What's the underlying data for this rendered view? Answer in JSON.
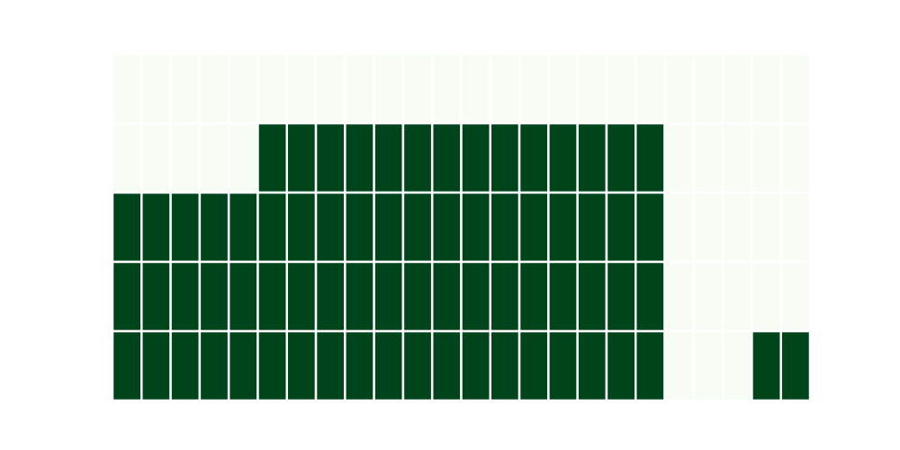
{
  "chart_data": {
    "type": "heatmap",
    "title": "",
    "xlabel": "",
    "ylabel": "",
    "rows": 5,
    "cols": 24,
    "values": [
      [
        0,
        0,
        0,
        0,
        0,
        0,
        0,
        0,
        0,
        0,
        0,
        0,
        0,
        0,
        0,
        0,
        0,
        0,
        0,
        0,
        0,
        0,
        0,
        0
      ],
      [
        0,
        0,
        0,
        0,
        0,
        1,
        1,
        1,
        1,
        1,
        1,
        1,
        1,
        1,
        1,
        1,
        1,
        1,
        1,
        0,
        0,
        0,
        0,
        0
      ],
      [
        1,
        1,
        1,
        1,
        1,
        1,
        1,
        1,
        1,
        1,
        1,
        1,
        1,
        1,
        1,
        1,
        1,
        1,
        1,
        0,
        0,
        0,
        0,
        0
      ],
      [
        1,
        1,
        1,
        1,
        1,
        1,
        1,
        1,
        1,
        1,
        1,
        1,
        1,
        1,
        1,
        1,
        1,
        1,
        1,
        0,
        0,
        0,
        0,
        0
      ],
      [
        1,
        1,
        1,
        1,
        1,
        1,
        1,
        1,
        1,
        1,
        1,
        1,
        1,
        1,
        1,
        1,
        1,
        1,
        1,
        0,
        0,
        0,
        1,
        1
      ]
    ],
    "colors": {
      "low": "#f7fcf5",
      "high": "#00441b",
      "gridline": "#ffffff"
    },
    "grid": false,
    "legend": "none"
  }
}
